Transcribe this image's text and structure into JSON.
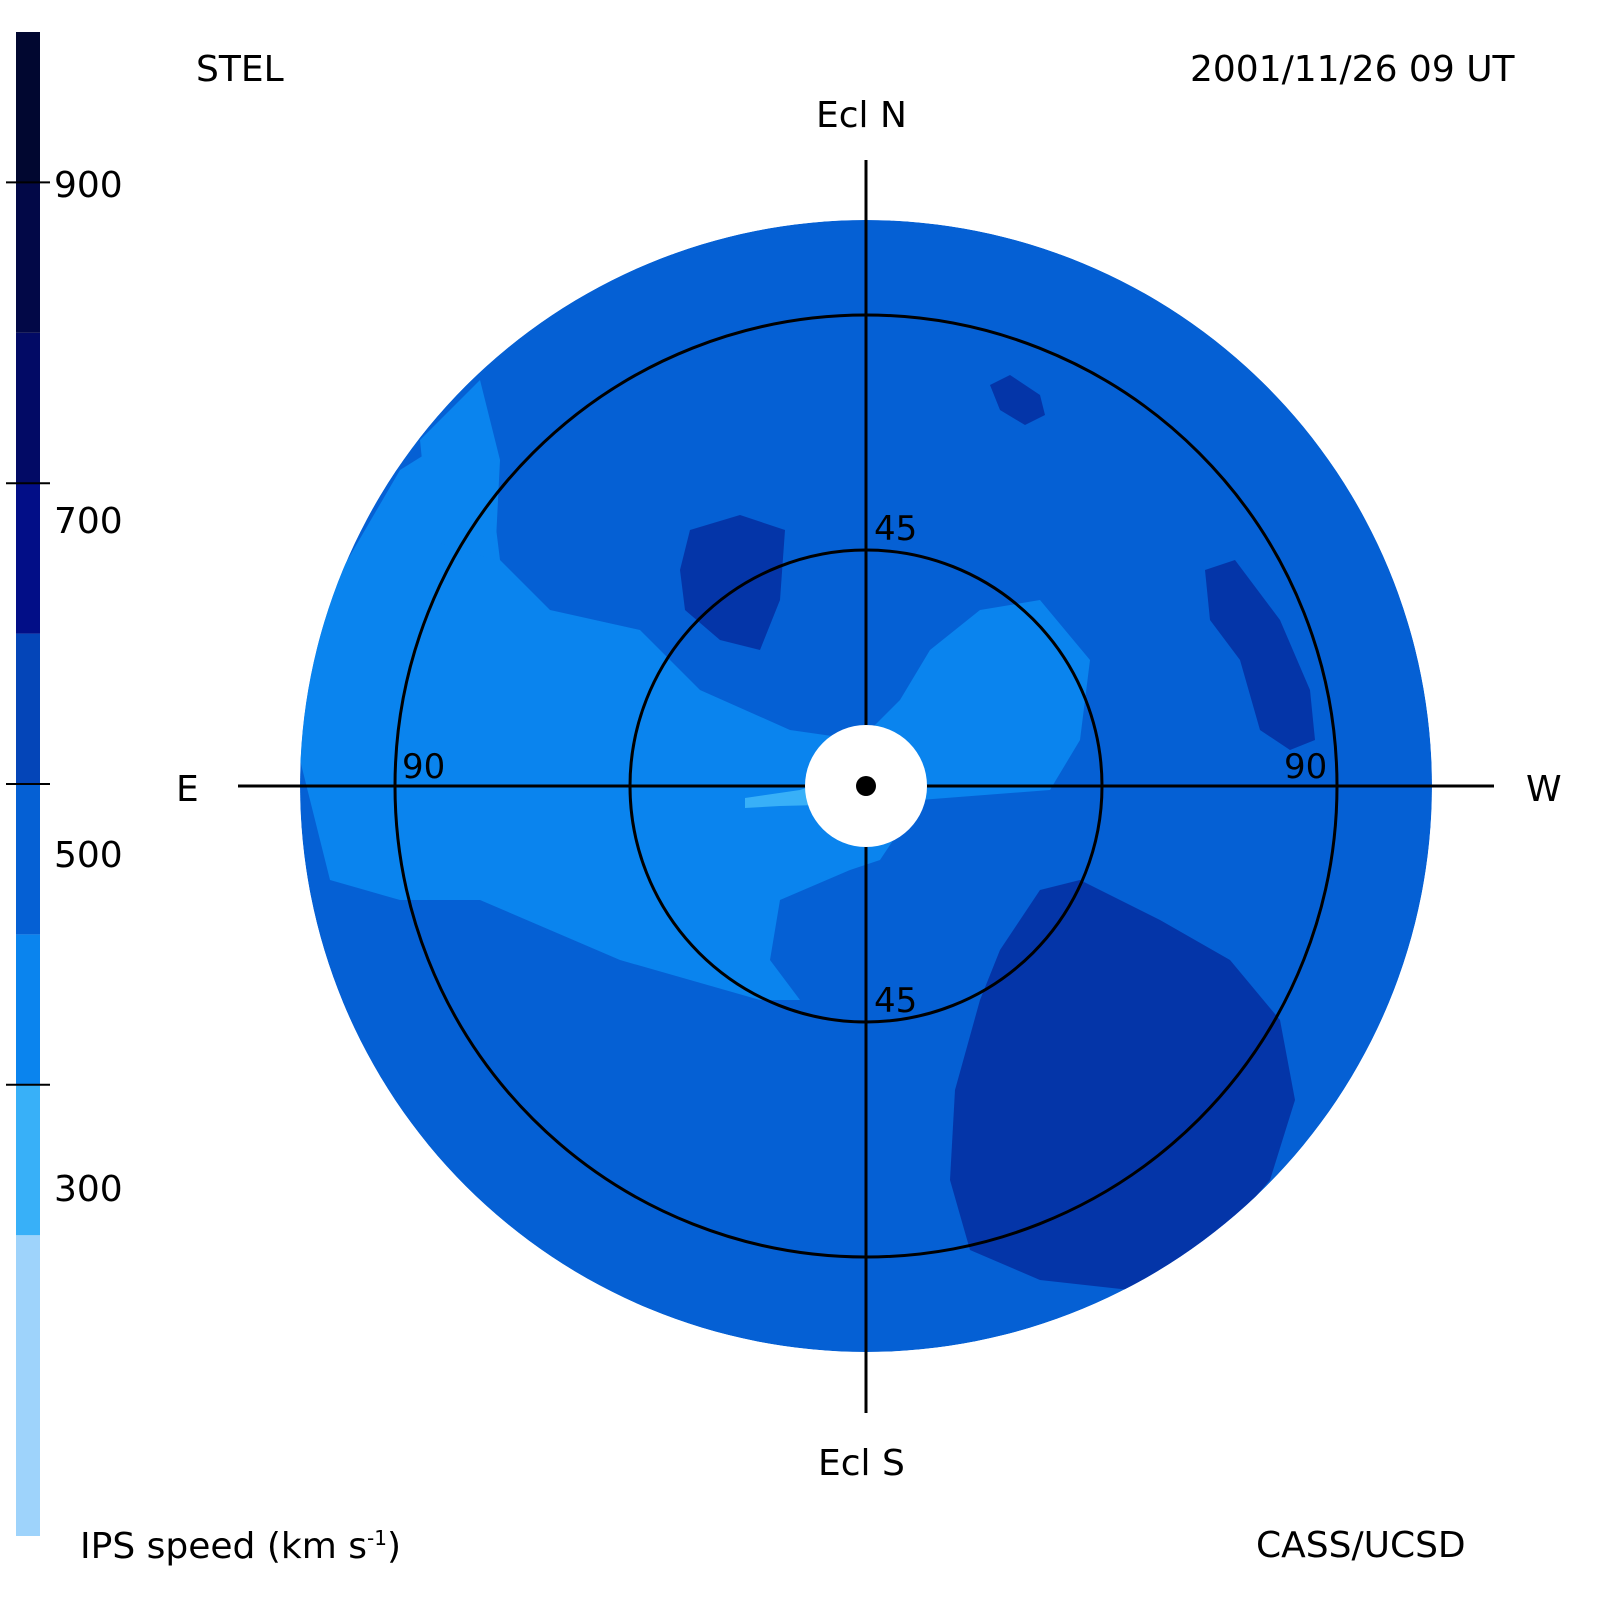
{
  "header": {
    "observatory": "STEL",
    "timestamp": "2001/11/26 09 UT"
  },
  "footer": {
    "colorbar_label_main": "IPS speed (km s",
    "colorbar_label_exp": "-1",
    "colorbar_label_close": ")",
    "credit": "CASS/UCSD"
  },
  "directions": {
    "north": "Ecl N",
    "south": "Ecl S",
    "east": "E",
    "west": "W"
  },
  "ring_labels": {
    "inner_top": "45",
    "inner_bottom": "45",
    "outer_left": "90",
    "outer_right": "90"
  },
  "colorbar": {
    "tick_labels": [
      "900",
      "700",
      "500",
      "300"
    ],
    "bands": [
      {
        "from": 0,
        "to": 200,
        "color": "#9ed3fb"
      },
      {
        "from": 200,
        "to": 300,
        "color": "#38b0f8"
      },
      {
        "from": 300,
        "to": 400,
        "color": "#0a84ee"
      },
      {
        "from": 400,
        "to": 500,
        "color": "#0560d4"
      },
      {
        "from": 500,
        "to": 600,
        "color": "#0445b8"
      },
      {
        "from": 600,
        "to": 700,
        "color": "#020e87"
      },
      {
        "from": 700,
        "to": 800,
        "color": "#020a65"
      },
      {
        "from": 800,
        "to": 900,
        "color": "#020847"
      },
      {
        "from": 900,
        "to": 1000,
        "color": "#010730"
      }
    ]
  },
  "chart_data": {
    "type": "heatmap",
    "projection": "polar sky map, elongation from center",
    "colorbar_range": [
      200,
      1000
    ],
    "colorbar_ticks": [
      300,
      500,
      700,
      900
    ],
    "colorbar_unit": "km s-1",
    "rings_elongation_deg": [
      45,
      90
    ],
    "map_colors": {
      "background": "#0560d4",
      "slow": "#0a84ee",
      "slowest": "#38b0f8",
      "fast": "#0435a8"
    }
  }
}
